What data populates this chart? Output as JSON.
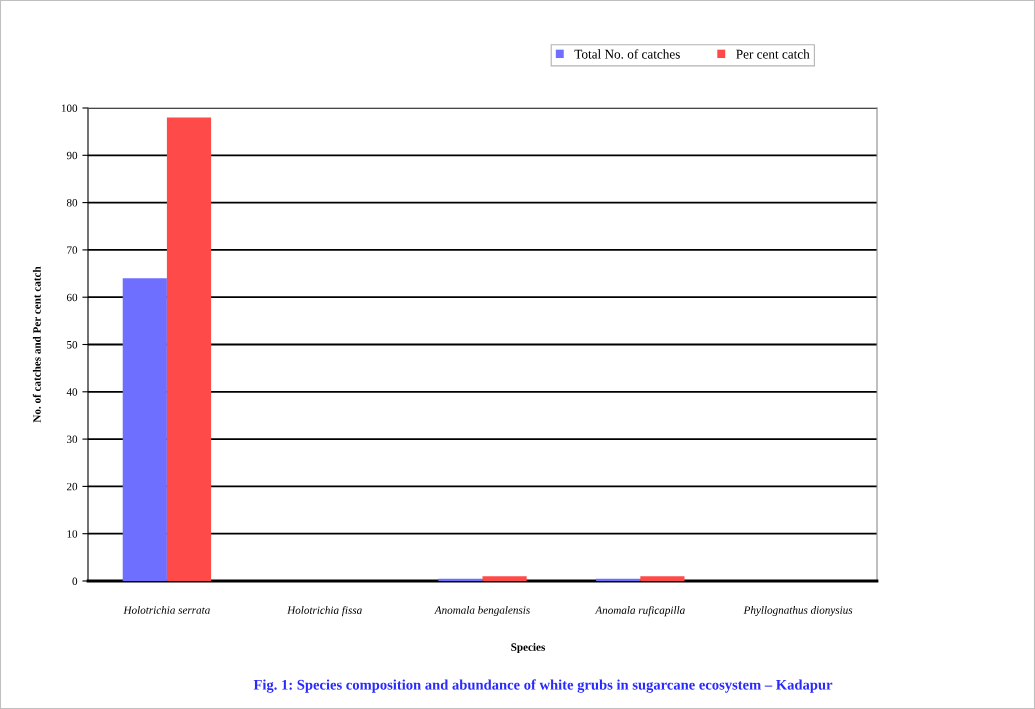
{
  "chart_data": {
    "type": "bar",
    "title": "Fig. 1: Species composition and abundance of white grubs in sugarcane ecosystem – Kadapur",
    "xlabel": "Species",
    "ylabel": "No. of catches and Per cent catch",
    "categories": [
      "Holotrichia serrata",
      "Holotrichia fissa",
      "Anomala bengalensis",
      "Anomala ruficapilla",
      "Phyllognathus dionysius"
    ],
    "series": [
      {
        "name": "Total No. of catches",
        "color": "#6f6fff",
        "values": [
          64,
          0,
          0.5,
          0.5,
          0
        ]
      },
      {
        "name": "Per cent catch",
        "color": "#ff4a4a",
        "values": [
          98,
          0,
          1,
          1,
          0
        ]
      }
    ],
    "ylim": [
      0,
      100
    ],
    "yticks": [
      0,
      10,
      20,
      30,
      40,
      50,
      60,
      70,
      80,
      90,
      100
    ],
    "grid": "y",
    "legend": "top right"
  }
}
